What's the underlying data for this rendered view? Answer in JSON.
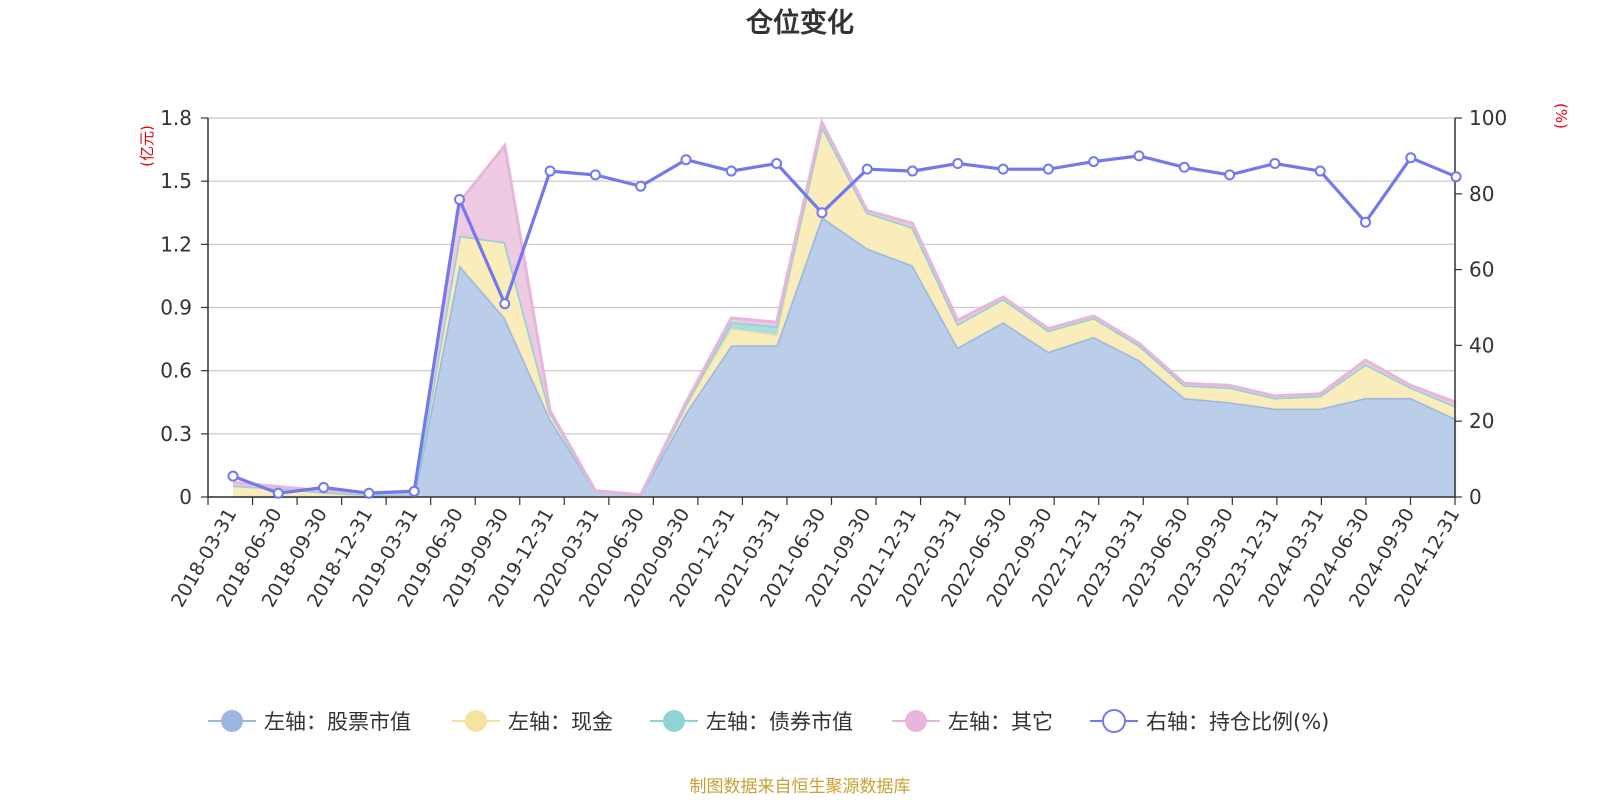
{
  "chart_data": {
    "type": "area",
    "title": "仓位变化",
    "left_axis": {
      "unit": "(亿元)",
      "ylim": [
        0,
        1.8
      ],
      "ticks": [
        "0",
        "0.3",
        "0.6",
        "0.9",
        "1.2",
        "1.5",
        "1.8"
      ]
    },
    "right_axis": {
      "unit": "(%)",
      "ylim": [
        0,
        100
      ],
      "ticks": [
        "0",
        "20",
        "40",
        "60",
        "80",
        "100"
      ]
    },
    "categories": [
      "2018-03-31",
      "2018-06-30",
      "2018-09-30",
      "2018-12-31",
      "2019-03-31",
      "2019-06-30",
      "2019-09-30",
      "2019-12-31",
      "2020-03-31",
      "2020-06-30",
      "2020-09-30",
      "2020-12-31",
      "2021-03-31",
      "2021-06-30",
      "2021-09-30",
      "2021-12-31",
      "2022-03-31",
      "2022-06-30",
      "2022-09-30",
      "2022-12-31",
      "2023-03-31",
      "2023-06-30",
      "2023-09-30",
      "2023-12-31",
      "2024-03-31",
      "2024-06-30",
      "2024-09-30",
      "2024-12-31"
    ],
    "series": [
      {
        "name": "左轴：股票市值",
        "axis": "left",
        "kind": "stacked-area",
        "color": "#9ab8e0",
        "fill": "#b6cbe9",
        "values": [
          0.004,
          0.001,
          0.003,
          0.001,
          0.002,
          1.1,
          0.85,
          0.37,
          0.03,
          0.01,
          0.4,
          0.72,
          0.72,
          1.33,
          1.18,
          1.1,
          0.71,
          0.83,
          0.69,
          0.76,
          0.65,
          0.47,
          0.45,
          0.42,
          0.42,
          0.47,
          0.47,
          0.37
        ]
      },
      {
        "name": "左轴：现金",
        "axis": "left",
        "kind": "stacked-area",
        "color": "#f6e3a1",
        "fill": "#faebb7",
        "values": [
          0.05,
          0.04,
          0.02,
          0.01,
          0.01,
          0.14,
          0.36,
          0.03,
          0.0,
          0.0,
          0.04,
          0.08,
          0.05,
          0.43,
          0.17,
          0.18,
          0.11,
          0.11,
          0.1,
          0.09,
          0.07,
          0.06,
          0.07,
          0.05,
          0.06,
          0.16,
          0.05,
          0.06
        ]
      },
      {
        "name": "左轴：债券市值",
        "axis": "left",
        "kind": "stacked-area",
        "color": "#8fd3d3",
        "fill": "#a7dcdc",
        "values": [
          0,
          0,
          0,
          0,
          0,
          0,
          0,
          0,
          0,
          0,
          0,
          0.03,
          0.04,
          0,
          0,
          0,
          0,
          0,
          0,
          0,
          0,
          0,
          0,
          0,
          0,
          0,
          0,
          0
        ]
      },
      {
        "name": "左轴：其它",
        "axis": "left",
        "kind": "stacked-area",
        "color": "#e8b6da",
        "fill": "#eec7e2",
        "values": [
          0.016,
          0.009,
          0.007,
          0.009,
          0.018,
          0.16,
          0.46,
          0.01,
          0.0,
          0.0,
          0.01,
          0.02,
          0.02,
          0.02,
          0.01,
          0.02,
          0.02,
          0.01,
          0.01,
          0.01,
          0.01,
          0.01,
          0.01,
          0.01,
          0.01,
          0.02,
          0.01,
          0.02
        ]
      },
      {
        "name": "右轴：持仓比例(%)",
        "axis": "right",
        "kind": "line",
        "color": "#7279ec",
        "values": [
          5.5,
          1.0,
          2.5,
          1.0,
          1.5,
          78.5,
          51.0,
          86.0,
          85.0,
          82.0,
          89.0,
          86.0,
          88.0,
          75.0,
          86.5,
          86.0,
          88.0,
          86.5,
          86.5,
          88.5,
          90.0,
          87.0,
          85.0,
          88.0,
          86.0,
          72.5,
          89.5,
          84.5
        ]
      }
    ],
    "legend_position": "bottom",
    "grid": true
  },
  "footer": {
    "source": "制图数据来自恒生聚源数据库"
  }
}
